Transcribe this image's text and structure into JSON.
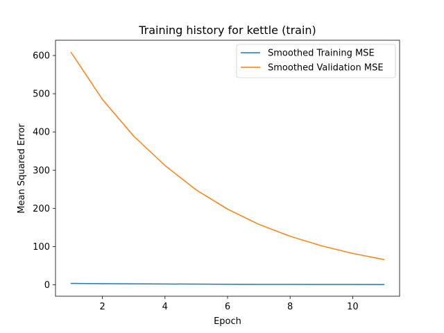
{
  "chart_data": {
    "type": "line",
    "title": "Training history for kettle (train)",
    "xlabel": "Epoch",
    "ylabel": "Mean Squared Error",
    "xlim": [
      0.5,
      11.5
    ],
    "ylim": [
      -30,
      640
    ],
    "xticks": [
      2,
      4,
      6,
      8,
      10
    ],
    "yticks": [
      0,
      100,
      200,
      300,
      400,
      500,
      600
    ],
    "grid": false,
    "legend_position": "top-right",
    "x": [
      1,
      2,
      3,
      4,
      5,
      6,
      7,
      8,
      9,
      10,
      11
    ],
    "series": [
      {
        "name": "Smoothed Training MSE",
        "color": "#1f77b4",
        "values": [
          3.5,
          2.9,
          2.4,
          2.0,
          1.7,
          1.4,
          1.2,
          1.0,
          0.9,
          0.8,
          0.7
        ]
      },
      {
        "name": "Smoothed Validation MSE",
        "color": "#ff7f0e",
        "values": [
          608,
          485,
          389,
          312,
          248,
          198,
          158,
          127,
          102,
          82,
          66
        ]
      }
    ]
  }
}
